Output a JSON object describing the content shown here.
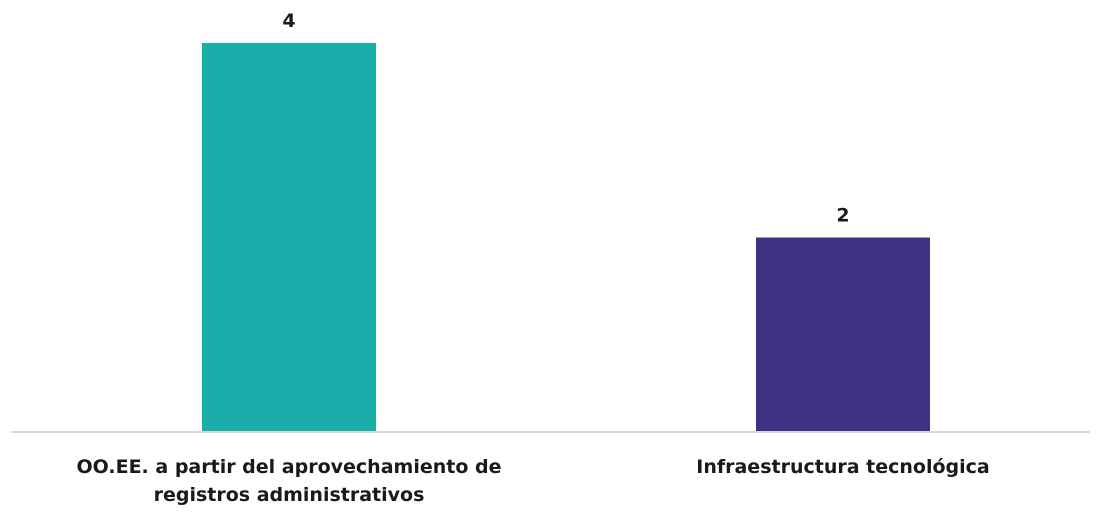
{
  "chart_data": {
    "type": "bar",
    "categories": [
      "OO.EE. a partir del aprovechamiento de registros administrativos",
      "Infraestructura tecnológica"
    ],
    "values": [
      4,
      2
    ],
    "bar_colors": [
      "#1aaeaa",
      "#413186"
    ],
    "data_labels": [
      "4",
      "2"
    ],
    "ylim": [
      0,
      4
    ],
    "grid": false,
    "legend": "none",
    "axis_color": "#d9d9d9",
    "label_color": "#1a1a1a"
  }
}
